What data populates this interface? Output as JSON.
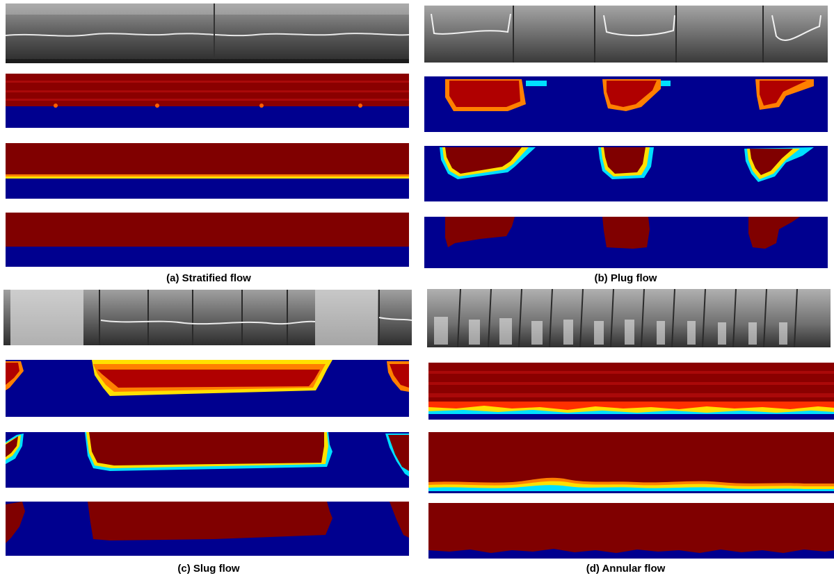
{
  "figure": {
    "panels": [
      {
        "id": "a",
        "caption": "(a) Stratified flow",
        "regime": "stratified"
      },
      {
        "id": "b",
        "caption": "(b) Plug flow",
        "regime": "plug"
      },
      {
        "id": "c",
        "caption": "(c) Slug flow",
        "regime": "slug"
      },
      {
        "id": "d",
        "caption": "(d) Annular flow",
        "regime": "annular"
      }
    ],
    "row_kinds": [
      "photo",
      "measured-map",
      "reconstruction-smooth",
      "reconstruction-binary"
    ],
    "colors": {
      "liquid_blue": "#00008f",
      "gas_red": "#800000",
      "interface_yellow": "#ffe000",
      "interface_cyan": "#00e0ff",
      "interface_orange": "#ff8000"
    }
  }
}
